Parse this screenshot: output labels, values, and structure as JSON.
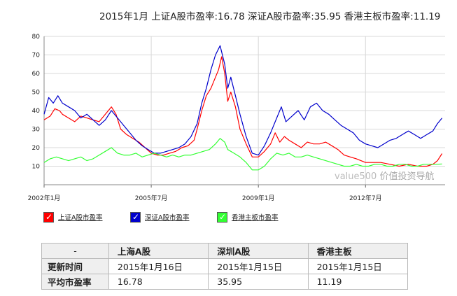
{
  "header": {
    "title": "2015年1月 上证A股市盈率:16.78  深证A股市盈率:35.95  香港主板市盈率:11.19"
  },
  "watermark": {
    "en": "value500",
    "cn": " 价值投资导航"
  },
  "legend": [
    {
      "label": "上证A股市盈率",
      "color": "#ff0000",
      "check": "✓"
    },
    {
      "label": "深证A股市盈率",
      "color": "#0000cc",
      "check": "✓"
    },
    {
      "label": "香港主板市盈率",
      "color": "#33ff33",
      "check": "✓"
    }
  ],
  "chart_data": {
    "type": "line",
    "ylim": [
      0,
      80
    ],
    "yticks": [
      10,
      20,
      30,
      40,
      50,
      60,
      70,
      80
    ],
    "xlim": [
      2002.0,
      2015.1
    ],
    "xticks": [
      {
        "label": "2002年1月",
        "x": 2002.0
      },
      {
        "label": "2005年7月",
        "x": 2005.5
      },
      {
        "label": "2009年1月",
        "x": 2009.0
      },
      {
        "label": "2012年7月",
        "x": 2012.5
      }
    ],
    "series": [
      {
        "name": "上证A股市盈率",
        "color": "#ff0000",
        "points": [
          [
            2002.0,
            35
          ],
          [
            2002.2,
            37
          ],
          [
            2002.35,
            41
          ],
          [
            2002.5,
            40
          ],
          [
            2002.6,
            38
          ],
          [
            2002.8,
            36
          ],
          [
            2003.0,
            34
          ],
          [
            2003.2,
            37
          ],
          [
            2003.4,
            36
          ],
          [
            2003.6,
            35
          ],
          [
            2003.8,
            34
          ],
          [
            2004.0,
            38
          ],
          [
            2004.2,
            42
          ],
          [
            2004.35,
            38
          ],
          [
            2004.5,
            30
          ],
          [
            2004.7,
            27
          ],
          [
            2004.9,
            25
          ],
          [
            2005.1,
            23
          ],
          [
            2005.3,
            20
          ],
          [
            2005.5,
            17
          ],
          [
            2005.7,
            16
          ],
          [
            2005.9,
            16
          ],
          [
            2006.1,
            17
          ],
          [
            2006.3,
            18
          ],
          [
            2006.5,
            20
          ],
          [
            2006.7,
            21
          ],
          [
            2006.9,
            24
          ],
          [
            2007.0,
            30
          ],
          [
            2007.15,
            40
          ],
          [
            2007.3,
            48
          ],
          [
            2007.45,
            52
          ],
          [
            2007.6,
            58
          ],
          [
            2007.7,
            62
          ],
          [
            2007.8,
            69
          ],
          [
            2007.9,
            60
          ],
          [
            2008.0,
            45
          ],
          [
            2008.1,
            50
          ],
          [
            2008.25,
            42
          ],
          [
            2008.4,
            30
          ],
          [
            2008.6,
            22
          ],
          [
            2008.8,
            15
          ],
          [
            2009.0,
            15
          ],
          [
            2009.2,
            18
          ],
          [
            2009.4,
            22
          ],
          [
            2009.55,
            28
          ],
          [
            2009.7,
            23
          ],
          [
            2009.85,
            26
          ],
          [
            2010.0,
            24
          ],
          [
            2010.2,
            22
          ],
          [
            2010.4,
            20
          ],
          [
            2010.6,
            23
          ],
          [
            2010.8,
            22
          ],
          [
            2011.0,
            22
          ],
          [
            2011.2,
            23
          ],
          [
            2011.4,
            21
          ],
          [
            2011.6,
            19
          ],
          [
            2011.8,
            16
          ],
          [
            2012.0,
            15
          ],
          [
            2012.2,
            14
          ],
          [
            2012.5,
            12
          ],
          [
            2012.8,
            12
          ],
          [
            2013.0,
            12
          ],
          [
            2013.3,
            11
          ],
          [
            2013.6,
            10
          ],
          [
            2013.9,
            11
          ],
          [
            2014.2,
            10
          ],
          [
            2014.5,
            10
          ],
          [
            2014.7,
            11
          ],
          [
            2014.85,
            13
          ],
          [
            2015.0,
            16.78
          ]
        ]
      },
      {
        "name": "深证A股市盈率",
        "color": "#0000cc",
        "points": [
          [
            2002.0,
            38
          ],
          [
            2002.15,
            47
          ],
          [
            2002.3,
            44
          ],
          [
            2002.45,
            48
          ],
          [
            2002.6,
            44
          ],
          [
            2002.8,
            42
          ],
          [
            2003.0,
            40
          ],
          [
            2003.2,
            36
          ],
          [
            2003.4,
            38
          ],
          [
            2003.6,
            35
          ],
          [
            2003.8,
            32
          ],
          [
            2004.0,
            35
          ],
          [
            2004.2,
            40
          ],
          [
            2004.4,
            36
          ],
          [
            2004.6,
            32
          ],
          [
            2004.8,
            28
          ],
          [
            2005.0,
            24
          ],
          [
            2005.2,
            21
          ],
          [
            2005.4,
            19
          ],
          [
            2005.6,
            17
          ],
          [
            2005.8,
            17
          ],
          [
            2006.0,
            18
          ],
          [
            2006.2,
            19
          ],
          [
            2006.4,
            20
          ],
          [
            2006.6,
            22
          ],
          [
            2006.8,
            26
          ],
          [
            2007.0,
            33
          ],
          [
            2007.15,
            44
          ],
          [
            2007.3,
            52
          ],
          [
            2007.45,
            62
          ],
          [
            2007.6,
            70
          ],
          [
            2007.75,
            75
          ],
          [
            2007.9,
            65
          ],
          [
            2008.0,
            52
          ],
          [
            2008.1,
            58
          ],
          [
            2008.25,
            48
          ],
          [
            2008.4,
            38
          ],
          [
            2008.6,
            26
          ],
          [
            2008.8,
            17
          ],
          [
            2009.0,
            16
          ],
          [
            2009.2,
            21
          ],
          [
            2009.4,
            28
          ],
          [
            2009.6,
            36
          ],
          [
            2009.75,
            42
          ],
          [
            2009.9,
            34
          ],
          [
            2010.1,
            37
          ],
          [
            2010.3,
            40
          ],
          [
            2010.5,
            35
          ],
          [
            2010.7,
            42
          ],
          [
            2010.9,
            44
          ],
          [
            2011.1,
            40
          ],
          [
            2011.3,
            38
          ],
          [
            2011.5,
            35
          ],
          [
            2011.7,
            32
          ],
          [
            2011.9,
            30
          ],
          [
            2012.1,
            28
          ],
          [
            2012.3,
            24
          ],
          [
            2012.5,
            22
          ],
          [
            2012.7,
            21
          ],
          [
            2012.9,
            20
          ],
          [
            2013.1,
            22
          ],
          [
            2013.3,
            24
          ],
          [
            2013.5,
            25
          ],
          [
            2013.7,
            27
          ],
          [
            2013.9,
            29
          ],
          [
            2014.1,
            27
          ],
          [
            2014.3,
            25
          ],
          [
            2014.5,
            27
          ],
          [
            2014.7,
            29
          ],
          [
            2014.85,
            33
          ],
          [
            2015.0,
            35.95
          ]
        ]
      },
      {
        "name": "香港主板市盈率",
        "color": "#33ff33",
        "points": [
          [
            2002.0,
            12
          ],
          [
            2002.2,
            14
          ],
          [
            2002.4,
            15
          ],
          [
            2002.6,
            14
          ],
          [
            2002.8,
            13
          ],
          [
            2003.0,
            14
          ],
          [
            2003.2,
            15
          ],
          [
            2003.4,
            13
          ],
          [
            2003.6,
            14
          ],
          [
            2003.8,
            16
          ],
          [
            2004.0,
            18
          ],
          [
            2004.2,
            20
          ],
          [
            2004.4,
            17
          ],
          [
            2004.6,
            16
          ],
          [
            2004.8,
            16
          ],
          [
            2005.0,
            17
          ],
          [
            2005.2,
            15
          ],
          [
            2005.4,
            16
          ],
          [
            2005.6,
            17
          ],
          [
            2005.8,
            16
          ],
          [
            2006.0,
            15
          ],
          [
            2006.2,
            16
          ],
          [
            2006.4,
            15
          ],
          [
            2006.6,
            16
          ],
          [
            2006.8,
            16
          ],
          [
            2007.0,
            17
          ],
          [
            2007.2,
            18
          ],
          [
            2007.4,
            19
          ],
          [
            2007.6,
            22
          ],
          [
            2007.75,
            25
          ],
          [
            2007.9,
            23
          ],
          [
            2008.0,
            19
          ],
          [
            2008.2,
            17
          ],
          [
            2008.4,
            15
          ],
          [
            2008.6,
            12
          ],
          [
            2008.8,
            8
          ],
          [
            2009.0,
            8
          ],
          [
            2009.2,
            10
          ],
          [
            2009.4,
            14
          ],
          [
            2009.6,
            17
          ],
          [
            2009.8,
            16
          ],
          [
            2010.0,
            17
          ],
          [
            2010.2,
            15
          ],
          [
            2010.4,
            15
          ],
          [
            2010.6,
            16
          ],
          [
            2010.8,
            15
          ],
          [
            2011.0,
            14
          ],
          [
            2011.2,
            13
          ],
          [
            2011.4,
            12
          ],
          [
            2011.6,
            11
          ],
          [
            2011.8,
            10
          ],
          [
            2012.0,
            10
          ],
          [
            2012.2,
            11
          ],
          [
            2012.4,
            10
          ],
          [
            2012.6,
            10
          ],
          [
            2012.8,
            11
          ],
          [
            2013.0,
            11
          ],
          [
            2013.2,
            10
          ],
          [
            2013.4,
            10
          ],
          [
            2013.6,
            11
          ],
          [
            2013.8,
            11
          ],
          [
            2014.0,
            10
          ],
          [
            2014.2,
            10
          ],
          [
            2014.4,
            11
          ],
          [
            2014.6,
            11
          ],
          [
            2014.8,
            11
          ],
          [
            2015.0,
            11.19
          ]
        ]
      }
    ]
  },
  "table": {
    "corner": "-",
    "columns": [
      "上海A股",
      "深圳A股",
      "香港主板"
    ],
    "rows": [
      {
        "label": "更新时间",
        "cells": [
          "2015年1月16日",
          "2015年1月15日",
          "2015年1月15日"
        ]
      },
      {
        "label": "平均市盈率",
        "cells": [
          "16.78",
          "35.95",
          "11.19"
        ]
      }
    ]
  }
}
